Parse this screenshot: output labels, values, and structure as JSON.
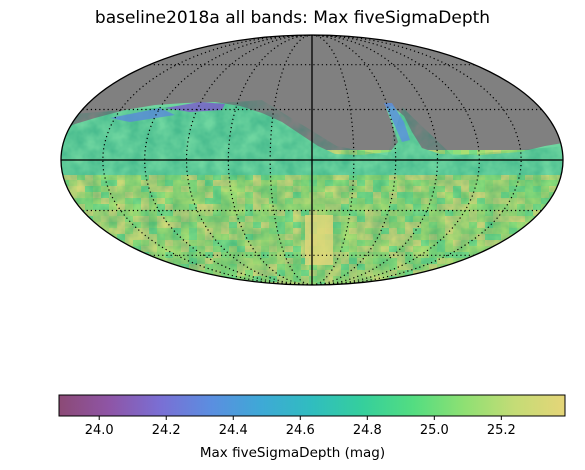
{
  "title": "baseline2018a all bands: Max fiveSigmaDepth",
  "projection": "mollweide",
  "graticule": {
    "style": "dotted",
    "meridians_deg": 30,
    "parallels_deg": 30
  },
  "mask_color": "#808080",
  "colormap": [
    "#8c4a76",
    "#8e55a6",
    "#7a6fd4",
    "#5b8ee0",
    "#3ea9d6",
    "#30bdbf",
    "#35cf9c",
    "#53dd81",
    "#8ee073",
    "#c4dc76",
    "#e5d578"
  ],
  "colorbar": {
    "label": "Max fiveSigmaDepth (mag)",
    "range": [
      23.88,
      25.39
    ],
    "ticks": [
      "24.0",
      "24.2",
      "24.4",
      "24.6",
      "24.8",
      "25.0",
      "25.2"
    ],
    "tick_values": [
      24.0,
      24.2,
      24.4,
      24.6,
      24.8,
      25.0,
      25.2
    ]
  }
}
